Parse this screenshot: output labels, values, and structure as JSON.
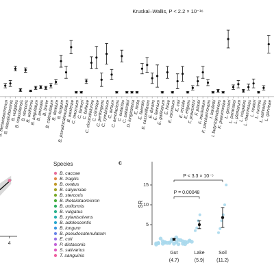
{
  "chart_data": [
    {
      "type": "dot_errorbar",
      "title": "Kruskal–Wallis, P < 2.2 × 10⁻¹⁶",
      "categories": [
        "B. thetaiotaomicron",
        "B. intestinihominis",
        "B. vulgatus",
        "B. massiliensis",
        "B. stercoris",
        "B. uniformis",
        "B. angulatum",
        "B. animalis",
        "B. breve",
        "B. catenulatum",
        "B. dentium",
        "B. longum",
        "B. pseudocatenulatum",
        "B. wexlerae",
        "C. innocuum",
        "C. farmeri",
        "C. bolteae",
        "C. clostridioforme",
        "C. citroniae",
        "C. perfringens",
        "C. symbiosum",
        "C. tertium",
        "C. aerofaciens",
        "C. eutactus",
        "C. sakazakii",
        "D. longicatena",
        "E. lenta",
        "E. faecalis",
        "E. casseliflavus",
        "E. durans",
        "E. faecium",
        "E. gallinarum",
        "E. hirae",
        "E. ramosum",
        "E. coli",
        "E. rectale",
        "E. eligens",
        "F. prausnitzii",
        "F. plautii",
        "F. nucleatum",
        "F. saccharivorans",
        "I. bartlettii",
        "I. butyriciproducens",
        "K. pneumoniae",
        "L. gasseri",
        "L. paracasei",
        "L. plantarum",
        "L. crispatus",
        "L. rhamnosus",
        "L. reuteri",
        "L. ruminis",
        "L. salivarius",
        "L. garvieae"
      ],
      "values": [
        1.2,
        1.5,
        3.5,
        0.6,
        3.3,
        0.5,
        0.9,
        1.0,
        0.9,
        1.2,
        1.7,
        4.5,
        3.0,
        6.4,
        0.3,
        0.3,
        1.8,
        4.3,
        5.0,
        2.0,
        5.5,
        2.7,
        0.3,
        5.2,
        0.3,
        0.3,
        0.3,
        3.5,
        4.0,
        2.2,
        2.5,
        0.3,
        3.0,
        0.3,
        1.8,
        2.8,
        0.3,
        0.9,
        1.8,
        3.0,
        1.6,
        0.3,
        0.5,
        0.3,
        7.5,
        1.0,
        1.4,
        0.5,
        1.0,
        1.5,
        0.3,
        0.9,
        6.8
      ],
      "errors": [
        0.3,
        0.4,
        0.3,
        0.2,
        0.3,
        0.1,
        0.2,
        0.2,
        0.2,
        0.3,
        0.3,
        0.8,
        0.8,
        0.9,
        0.1,
        0.1,
        0.3,
        0.8,
        1.5,
        0.9,
        1.4,
        0.7,
        0.1,
        0.8,
        0.1,
        0.1,
        0.1,
        0.7,
        1.0,
        0.7,
        1.5,
        0.1,
        0.8,
        0.1,
        1.0,
        1.0,
        0.1,
        0.3,
        0.6,
        0.8,
        0.4,
        0.1,
        0.2,
        0.1,
        1.2,
        0.3,
        0.5,
        0.2,
        0.4,
        0.6,
        0.1,
        0.3,
        1.2
      ],
      "ylim": [
        0,
        10
      ],
      "color": "#111111"
    },
    {
      "type": "scatter",
      "legend_title": "Species",
      "species": [
        {
          "name": "B. caccae",
          "color": "#e8709c"
        },
        {
          "name": "B. fragilis",
          "color": "#e0894a"
        },
        {
          "name": "B. ovatus",
          "color": "#c29a2a"
        },
        {
          "name": "B. salyersiae",
          "color": "#a3a428"
        },
        {
          "name": "B. stercoris",
          "color": "#7aaa2c"
        },
        {
          "name": "B. thetaiotaomicron",
          "color": "#4aae3c"
        },
        {
          "name": "B. uniformis",
          "color": "#2fb060"
        },
        {
          "name": "B. vulgatus",
          "color": "#2bb28c"
        },
        {
          "name": "B. xylanisolvens",
          "color": "#2ab0b0"
        },
        {
          "name": "B. adolescentis",
          "color": "#2aa8d0"
        },
        {
          "name": "B. longum",
          "color": "#3a98e0"
        },
        {
          "name": "B. pseudocatenulatum",
          "color": "#6a86e8"
        },
        {
          "name": "E. coli",
          "color": "#9a72e4"
        },
        {
          "name": "P. distasonis",
          "color": "#c264d8"
        },
        {
          "name": "S. salivarius",
          "color": "#e05cc0"
        },
        {
          "name": "T. sanguinis",
          "color": "#ee62a0"
        }
      ],
      "x": [
        4
      ],
      "y": [
        7.4
      ],
      "point_color": "#e8709c",
      "fit": {
        "x": [
          3.45,
          4.1
        ],
        "y": [
          6.2,
          7.5
        ]
      },
      "xlim": [
        3.45,
        4.45
      ],
      "ylim": [
        0,
        10
      ],
      "xticks": [
        4
      ]
    },
    {
      "type": "strip",
      "panel_label": "c",
      "ylabel": "SR",
      "categories": [
        "Gut",
        "Lake",
        "Soil"
      ],
      "category_notes": [
        "(4.7)",
        "(5.9)",
        "(11.2)"
      ],
      "means": [
        1.3,
        5.0,
        6.8
      ],
      "errors": [
        0.2,
        1.0,
        2.5
      ],
      "points": [
        [
          0,
          0.2,
          0.4,
          0.6,
          0.8,
          1.0,
          0.3,
          0.5,
          0.9,
          1.2,
          0.1,
          0.7,
          1.5,
          0.4,
          0.2,
          1.1,
          0.6,
          0.3,
          0.8,
          0.5,
          1.8,
          0.2,
          0.9,
          0.4,
          0.6,
          1.3,
          0.1,
          0.7
        ],
        [
          3.5,
          4.2,
          6.0,
          7.5
        ],
        [
          3.0,
          4.0,
          6.0,
          7.5,
          10.0,
          15.0
        ]
      ],
      "point_color": "#a8d8ec",
      "mean_color": "#111111",
      "annotations": [
        "P = 0.00048",
        "P < 3.3 × 10⁻⁵"
      ],
      "ylim": [
        0,
        20
      ],
      "yticks": [
        5,
        10,
        15
      ]
    }
  ]
}
